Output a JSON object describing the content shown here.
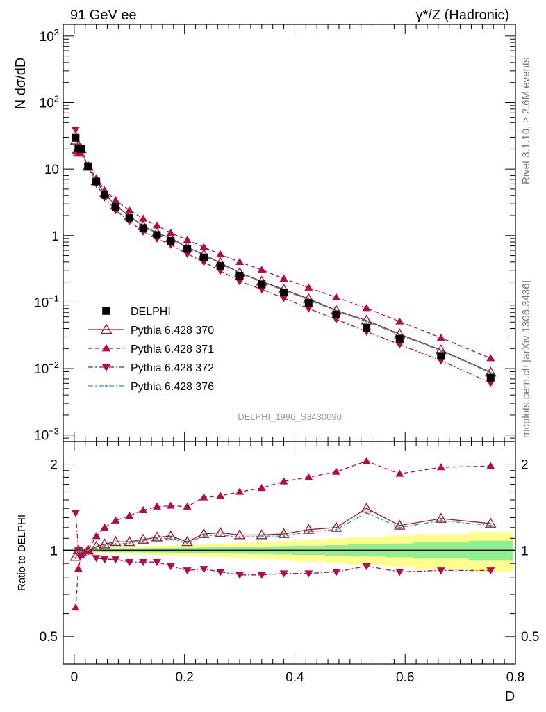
{
  "header": {
    "left": "91 GeV ee",
    "right": "γ*/Z (Hadronic)"
  },
  "side_labels": {
    "rivet": "Rivet 3.1.10, ≥ 2.6M events",
    "mcplots": "mcplots.cern.ch [arXiv:1306.3436]"
  },
  "analysis_id": "DELPHI_1996_S3430090",
  "colors": {
    "data": "#000000",
    "p370": "#a0182a",
    "p371": "#b3094d",
    "p372": "#b3094d",
    "p376": "#2e9e9e",
    "band_inner": "#90f090",
    "band_outer": "#ffff90"
  },
  "chart_data": [
    {
      "type": "scatter",
      "panel": "main",
      "ylabel": "N dσ/dD",
      "yscale": "log",
      "ylim": [
        0.0008,
        1500
      ],
      "xlim": [
        -0.02,
        0.8
      ],
      "y_ticks": [
        {
          "v": 1000,
          "base": "10",
          "exp": "3"
        },
        {
          "v": 100,
          "base": "10",
          "exp": "2"
        },
        {
          "v": 10,
          "base": "10",
          "exp": ""
        },
        {
          "v": 1,
          "base": "1",
          "exp": ""
        },
        {
          "v": 0.1,
          "base": "10",
          "exp": "−1"
        },
        {
          "v": 0.01,
          "base": "10",
          "exp": "−2"
        },
        {
          "v": 0.001,
          "base": "10",
          "exp": "−3"
        }
      ],
      "x": [
        0.0025,
        0.0075,
        0.0125,
        0.025,
        0.04,
        0.055,
        0.075,
        0.1,
        0.125,
        0.15,
        0.175,
        0.205,
        0.235,
        0.265,
        0.3,
        0.34,
        0.38,
        0.425,
        0.475,
        0.53,
        0.59,
        0.665,
        0.755
      ],
      "legend": [
        "DELPHI",
        "Pythia 6.428 370",
        "Pythia 6.428 371",
        "Pythia 6.428 372",
        "Pythia 6.428 376"
      ],
      "series": [
        {
          "name": "DELPHI",
          "style": "data",
          "values": [
            29.5,
            20.5,
            20.0,
            11.0,
            6.5,
            4.1,
            2.7,
            1.85,
            1.3,
            1.02,
            0.83,
            0.63,
            0.47,
            0.35,
            0.25,
            0.185,
            0.14,
            0.097,
            0.065,
            0.041,
            0.028,
            0.0155,
            0.0073
          ]
        },
        {
          "name": "Pythia 6.428 370",
          "style": "p370",
          "values": [
            27.0,
            18.0,
            20.0,
            10.9,
            6.6,
            4.3,
            2.85,
            1.95,
            1.4,
            1.1,
            0.92,
            0.67,
            0.52,
            0.39,
            0.275,
            0.205,
            0.155,
            0.112,
            0.075,
            0.053,
            0.033,
            0.019,
            0.0088
          ]
        },
        {
          "name": "Pythia 6.428 371",
          "style": "p371",
          "values": [
            18.5,
            17.0,
            17.0,
            11.2,
            7.3,
            4.8,
            3.4,
            2.4,
            1.8,
            1.42,
            1.1,
            0.86,
            0.67,
            0.52,
            0.4,
            0.305,
            0.225,
            0.165,
            0.118,
            0.081,
            0.051,
            0.029,
            0.0143
          ]
        },
        {
          "name": "Pythia 6.428 372",
          "style": "p372",
          "values": [
            39.0,
            21.0,
            18.5,
            10.8,
            6.0,
            3.75,
            2.4,
            1.65,
            1.15,
            0.9,
            0.73,
            0.53,
            0.4,
            0.295,
            0.205,
            0.155,
            0.115,
            0.08,
            0.055,
            0.036,
            0.023,
            0.0132,
            0.0061
          ]
        },
        {
          "name": "Pythia 6.428 376",
          "style": "p376",
          "values": [
            26.5,
            18.2,
            20.0,
            10.9,
            6.6,
            4.25,
            2.82,
            1.92,
            1.38,
            1.08,
            0.9,
            0.66,
            0.51,
            0.38,
            0.27,
            0.2,
            0.15,
            0.108,
            0.073,
            0.051,
            0.032,
            0.0185,
            0.0086
          ]
        }
      ]
    },
    {
      "type": "line",
      "panel": "ratio",
      "ylabel": "Ratio to DELPHI",
      "xlabel": "D",
      "yscale": "log",
      "ylim": [
        0.4,
        2.4
      ],
      "xlim": [
        -0.02,
        0.8
      ],
      "y_ticks": [
        {
          "v": 2,
          "label": "2"
        },
        {
          "v": 1,
          "label": "1"
        },
        {
          "v": 0.5,
          "label": "0.5"
        }
      ],
      "x_ticks": [
        {
          "v": 0,
          "label": "0"
        },
        {
          "v": 0.2,
          "label": "0.2"
        },
        {
          "v": 0.4,
          "label": "0.4"
        },
        {
          "v": 0.6,
          "label": "0.6"
        },
        {
          "v": 0.8,
          "label": "0.8"
        }
      ],
      "x": [
        0.0025,
        0.0075,
        0.0125,
        0.025,
        0.04,
        0.055,
        0.075,
        0.1,
        0.125,
        0.15,
        0.175,
        0.205,
        0.235,
        0.265,
        0.3,
        0.34,
        0.38,
        0.425,
        0.475,
        0.53,
        0.59,
        0.665,
        0.755
      ],
      "bands": {
        "edges": [
          0,
          0.005,
          0.01,
          0.015,
          0.035,
          0.045,
          0.065,
          0.085,
          0.115,
          0.135,
          0.165,
          0.185,
          0.225,
          0.245,
          0.285,
          0.315,
          0.365,
          0.395,
          0.455,
          0.495,
          0.565,
          0.615,
          0.715,
          0.795
        ],
        "inner": [
          0.012,
          0.012,
          0.012,
          0.012,
          0.013,
          0.014,
          0.015,
          0.016,
          0.017,
          0.018,
          0.019,
          0.021,
          0.023,
          0.025,
          0.027,
          0.03,
          0.033,
          0.037,
          0.042,
          0.048,
          0.055,
          0.065,
          0.08
        ],
        "outer": [
          0.02,
          0.02,
          0.02,
          0.022,
          0.024,
          0.026,
          0.028,
          0.031,
          0.034,
          0.037,
          0.04,
          0.045,
          0.05,
          0.055,
          0.06,
          0.068,
          0.076,
          0.086,
          0.098,
          0.11,
          0.125,
          0.14,
          0.16
        ]
      },
      "series": [
        {
          "name": "Pythia 6.428 370",
          "style": "p370",
          "values": [
            0.95,
            1.0,
            0.99,
            1.0,
            1.03,
            1.05,
            1.07,
            1.07,
            1.09,
            1.11,
            1.12,
            1.07,
            1.14,
            1.15,
            1.13,
            1.13,
            1.14,
            1.18,
            1.2,
            1.4,
            1.22,
            1.29,
            1.24
          ]
        },
        {
          "name": "Pythia 6.428 371",
          "style": "p371",
          "values": [
            0.63,
            0.86,
            0.96,
            1.0,
            1.12,
            1.2,
            1.27,
            1.32,
            1.38,
            1.42,
            1.43,
            1.42,
            1.53,
            1.55,
            1.6,
            1.65,
            1.74,
            1.8,
            1.88,
            2.05,
            1.85,
            1.95,
            1.97
          ]
        },
        {
          "name": "Pythia 6.428 372",
          "style": "p372",
          "values": [
            1.35,
            1.0,
            0.96,
            0.99,
            0.94,
            0.93,
            0.93,
            0.91,
            0.91,
            0.91,
            0.88,
            0.85,
            0.86,
            0.84,
            0.82,
            0.82,
            0.83,
            0.83,
            0.84,
            0.88,
            0.84,
            0.85,
            0.85
          ]
        },
        {
          "name": "Pythia 6.428 376",
          "style": "p376",
          "values": [
            0.94,
            0.99,
            0.99,
            1.0,
            1.02,
            1.04,
            1.05,
            1.06,
            1.08,
            1.1,
            1.1,
            1.06,
            1.12,
            1.13,
            1.11,
            1.12,
            1.12,
            1.16,
            1.18,
            1.35,
            1.2,
            1.27,
            1.22
          ]
        }
      ]
    }
  ]
}
